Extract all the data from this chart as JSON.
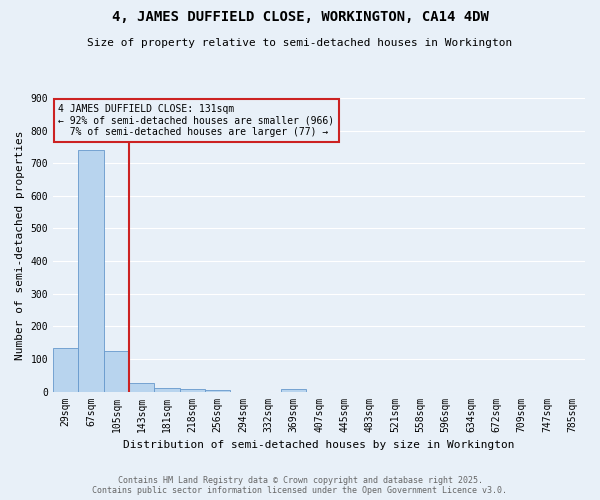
{
  "title": "4, JAMES DUFFIELD CLOSE, WORKINGTON, CA14 4DW",
  "subtitle": "Size of property relative to semi-detached houses in Workington",
  "xlabel": "Distribution of semi-detached houses by size in Workington",
  "ylabel": "Number of semi-detached properties",
  "bin_labels": [
    "29sqm",
    "67sqm",
    "105sqm",
    "143sqm",
    "181sqm",
    "218sqm",
    "256sqm",
    "294sqm",
    "332sqm",
    "369sqm",
    "407sqm",
    "445sqm",
    "483sqm",
    "521sqm",
    "558sqm",
    "596sqm",
    "634sqm",
    "672sqm",
    "709sqm",
    "747sqm",
    "785sqm"
  ],
  "bar_values": [
    135,
    740,
    125,
    27,
    12,
    8,
    5,
    0,
    0,
    8,
    0,
    0,
    0,
    0,
    0,
    0,
    0,
    0,
    0,
    0,
    0
  ],
  "highlight_bin_index": 2,
  "property_label": "4 JAMES DUFFIELD CLOSE: 131sqm",
  "pct_smaller": 92,
  "n_smaller": 966,
  "pct_larger": 7,
  "n_larger": 77,
  "bar_color": "#b8d4ee",
  "bar_edge_color": "#6699cc",
  "highlight_color": "#cc2222",
  "annotation_box_color": "#cc2222",
  "background_color": "#e8f0f8",
  "grid_color": "#ffffff",
  "footer_text": "Contains HM Land Registry data © Crown copyright and database right 2025.\nContains public sector information licensed under the Open Government Licence v3.0.",
  "ylim": [
    0,
    900
  ],
  "yticks": [
    0,
    100,
    200,
    300,
    400,
    500,
    600,
    700,
    800,
    900
  ],
  "title_fontsize": 10,
  "subtitle_fontsize": 8,
  "ylabel_fontsize": 8,
  "xlabel_fontsize": 8,
  "tick_fontsize": 7,
  "ann_fontsize": 7
}
